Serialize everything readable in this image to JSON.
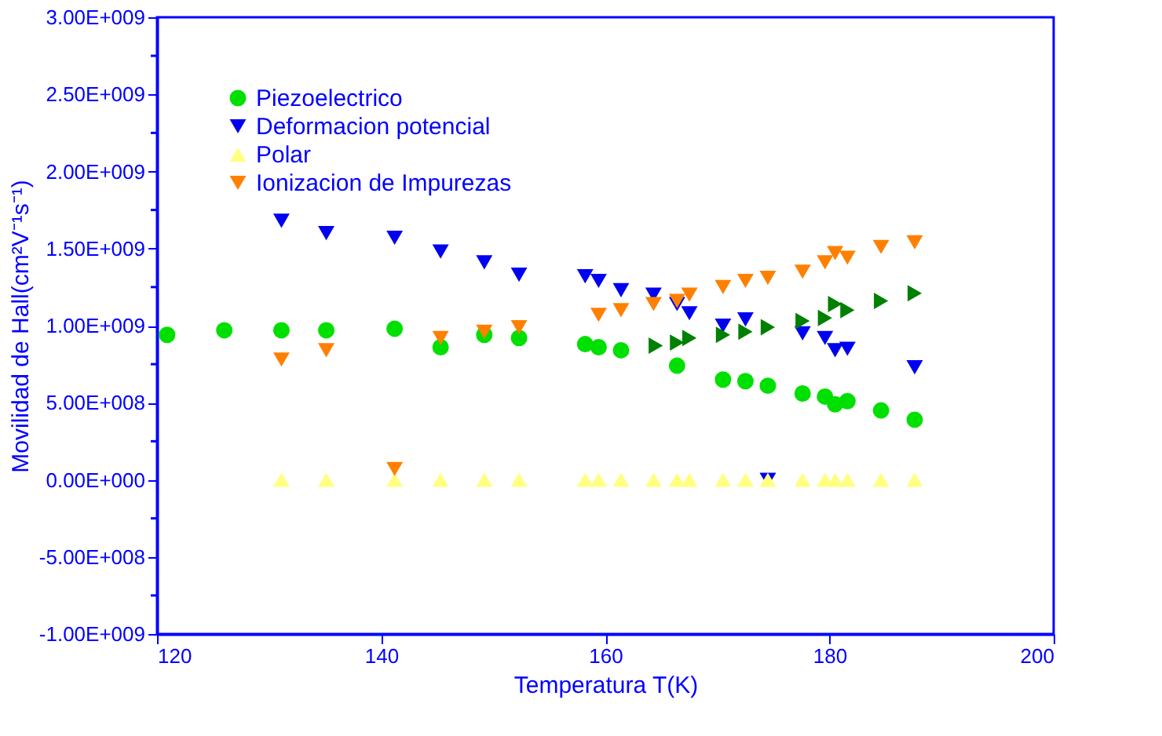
{
  "chart_data": {
    "type": "scatter",
    "xlabel": "Temperatura T(K)",
    "ylabel": "Movilidad de Hall(cm²V⁻¹s⁻¹)",
    "xlim": [
      120,
      200
    ],
    "xticks": [
      120,
      140,
      160,
      180,
      200
    ],
    "ylim": [
      -1000000000,
      3000000000
    ],
    "yticks": [
      {
        "value": -1000000000,
        "label": "-1.00E+009"
      },
      {
        "value": -750000000,
        "label": null
      },
      {
        "value": -500000000,
        "label": "-5.00E+008"
      },
      {
        "value": -250000000,
        "label": null
      },
      {
        "value": 0,
        "label": "0.00E+000"
      },
      {
        "value": 250000000,
        "label": null
      },
      {
        "value": 500000000,
        "label": "5.00E+008"
      },
      {
        "value": 750000000,
        "label": null
      },
      {
        "value": 1000000000,
        "label": "1.00E+009"
      },
      {
        "value": 1250000000,
        "label": null
      },
      {
        "value": 1500000000,
        "label": "1.50E+009"
      },
      {
        "value": 1750000000,
        "label": null
      },
      {
        "value": 2000000000,
        "label": "2.00E+009"
      },
      {
        "value": 2250000000,
        "label": null
      },
      {
        "value": 2500000000,
        "label": "2.50E+009"
      },
      {
        "value": 2750000000,
        "label": null
      },
      {
        "value": 3000000000,
        "label": "3.00E+009"
      }
    ],
    "grid": false,
    "legend": "top left",
    "series": [
      {
        "name": "Piezoelectrico",
        "color": "#00e000",
        "marker": "circle",
        "x": [
          120.9,
          126.0,
          131.1,
          135.1,
          141.2,
          145.3,
          149.2,
          152.3,
          158.2,
          159.4,
          161.4,
          166.4,
          170.5,
          172.5,
          174.5,
          177.6,
          179.6,
          180.5,
          181.6,
          184.6,
          187.6
        ],
        "values": [
          940000000,
          970000000,
          970000000,
          970000000,
          980000000,
          860000000,
          940000000,
          920000000,
          880000000,
          860000000,
          840000000,
          740000000,
          650000000,
          640000000,
          610000000,
          560000000,
          540000000,
          490000000,
          510000000,
          450000000,
          390000000
        ]
      },
      {
        "name": "Deformacion potencial",
        "color": "#0000f0",
        "marker": "triangle-down",
        "x": [
          131.1,
          135.1,
          141.2,
          145.3,
          149.2,
          152.3,
          158.2,
          159.4,
          161.4,
          164.3,
          166.4,
          167.5,
          170.5,
          172.5,
          174.5,
          177.6,
          179.6,
          180.5,
          181.6,
          187.6
        ],
        "values": [
          1680000000,
          1600000000,
          1570000000,
          1480000000,
          1410000000,
          1330000000,
          1320000000,
          1290000000,
          1230000000,
          1200000000,
          1140000000,
          1080000000,
          1000000000,
          1040000000,
          0,
          950000000,
          920000000,
          840000000,
          850000000,
          730000000
        ]
      },
      {
        "name": "Polar",
        "color": "#ffff80",
        "marker": "triangle-up",
        "x": [
          131.1,
          135.1,
          141.2,
          145.3,
          149.2,
          152.3,
          158.2,
          159.4,
          161.4,
          164.3,
          166.4,
          167.5,
          170.5,
          172.5,
          174.5,
          177.6,
          179.6,
          180.5,
          181.6,
          184.6,
          187.6
        ],
        "values": [
          0,
          0,
          0,
          0,
          0,
          0,
          0,
          0,
          0,
          0,
          0,
          0,
          0,
          0,
          0,
          0,
          0,
          0,
          0,
          0,
          0
        ]
      },
      {
        "name": "Ionizacion de Impurezas",
        "color": "#ff8000",
        "marker": "triangle-down",
        "x": [
          131.1,
          135.1,
          141.2,
          145.3,
          149.2,
          152.3,
          159.4,
          161.4,
          164.3,
          166.4,
          167.5,
          170.5,
          172.5,
          174.5,
          177.6,
          179.6,
          180.5,
          181.6,
          184.6,
          187.6
        ],
        "values": [
          780000000,
          840000000,
          70000000,
          920000000,
          960000000,
          990000000,
          1070000000,
          1100000000,
          1140000000,
          1160000000,
          1200000000,
          1250000000,
          1290000000,
          1310000000,
          1350000000,
          1410000000,
          1470000000,
          1440000000,
          1510000000,
          1540000000
        ]
      },
      {
        "color": "#008000",
        "marker": "triangle-right",
        "x": [
          164.5,
          166.4,
          167.5,
          170.5,
          172.5,
          174.5,
          177.6,
          179.6,
          180.5,
          181.6,
          184.6,
          187.6
        ],
        "values": [
          870000000,
          890000000,
          920000000,
          940000000,
          960000000,
          990000000,
          1030000000,
          1050000000,
          1140000000,
          1100000000,
          1160000000,
          1210000000
        ]
      }
    ]
  }
}
